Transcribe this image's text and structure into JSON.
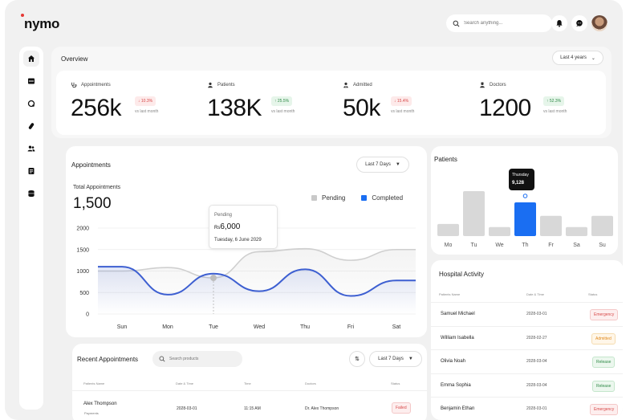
{
  "brand": {
    "name": "nymo",
    "accent": "#e53935"
  },
  "header": {
    "search_placeholder": "Search anything...",
    "icons": [
      "search-icon",
      "bell-icon",
      "chat-icon"
    ]
  },
  "sidebar": {
    "items": [
      "home-icon",
      "inbox-icon",
      "stethoscope-icon",
      "pill-icon",
      "users-icon",
      "clipboard-icon",
      "database-icon"
    ]
  },
  "overview": {
    "title": "Overview",
    "range": "Last 4 years",
    "stats": [
      {
        "label": "Appointments",
        "value": "256k",
        "change": "10.3%",
        "trend": "down",
        "vs": "vs last month"
      },
      {
        "label": "Patients",
        "value": "138K",
        "change": "25.5%",
        "trend": "up",
        "vs": "vs last month"
      },
      {
        "label": "Admitted",
        "value": "50k",
        "change": "15.4%",
        "trend": "down",
        "vs": "vs last month"
      },
      {
        "label": "Doctors",
        "value": "1200",
        "change": "52.3%",
        "trend": "up",
        "vs": "vs last month"
      }
    ]
  },
  "appointments": {
    "title": "Appointments",
    "range": "Last 7 Days",
    "total_label": "Total Appointments",
    "total_value": "1,500",
    "legend": {
      "pending": "Pending",
      "completed": "Completed"
    },
    "tooltip": {
      "title": "Pending",
      "currency": "Rs",
      "amount": "6,000",
      "date": "Tuesday, 6 June 2029"
    }
  },
  "chart_data": [
    {
      "type": "line",
      "categories": [
        "Sun",
        "Mon",
        "Tue",
        "Wed",
        "Thu",
        "Fri",
        "Sat"
      ],
      "series": [
        {
          "name": "Pending",
          "color": "#cfcfcf",
          "values": [
            1000,
            1080,
            840,
            1450,
            1520,
            1250,
            1500
          ]
        },
        {
          "name": "Completed",
          "color": "#3d5fd1",
          "values": [
            1100,
            450,
            940,
            530,
            1040,
            420,
            780
          ]
        }
      ],
      "ylim": [
        0,
        2000
      ],
      "yticks": [
        0,
        500,
        1000,
        1500,
        2000
      ]
    },
    {
      "type": "bar",
      "title": "Patients",
      "categories": [
        "Mo",
        "Tu",
        "We",
        "Th",
        "Fr",
        "Sa",
        "Su"
      ],
      "values": [
        2.7,
        10.0,
        2.0,
        7.5,
        4.5,
        2.0,
        4.5
      ],
      "highlight": 3,
      "tooltip": {
        "day": "Thursday",
        "value": "9,128"
      },
      "colors": {
        "bar": "#d8d8d8",
        "highlight": "#1a6ef2"
      }
    }
  ],
  "hospital_activity": {
    "title": "Hospital Activity",
    "headers": {
      "name": "Patients Name",
      "date": "Date & Time",
      "status": "Status"
    },
    "rows": [
      {
        "name": "Samuel Michael",
        "date": "2028-03-01",
        "status": "Emergency",
        "kind": "emergency"
      },
      {
        "name": "William Isabella",
        "date": "2028-02-27",
        "status": "Admitted",
        "kind": "admitted"
      },
      {
        "name": "Olivia Noah",
        "date": "2028-03-04",
        "status": "Release",
        "kind": "release"
      },
      {
        "name": "Emma Sophia",
        "date": "2028-03-04",
        "status": "Release",
        "kind": "release"
      },
      {
        "name": "Benjamin Ethan",
        "date": "2028-03-01",
        "status": "Emergency",
        "kind": "emergency"
      }
    ]
  },
  "recent_appointments": {
    "title": "Recent Appointments",
    "search_placeholder": "Search products",
    "range": "Last 7 Days",
    "headers": {
      "name": "Patients Name",
      "date": "Date & Time",
      "time": "Time",
      "doctor": "Doctors",
      "status": "Status"
    },
    "rows": [
      {
        "name": "Alex Thompson",
        "sub": "Payments",
        "date": "2028-03-01",
        "time": "11:15 AM",
        "doctor": "Dr. Alex Thompson",
        "status": "Failed"
      }
    ]
  }
}
